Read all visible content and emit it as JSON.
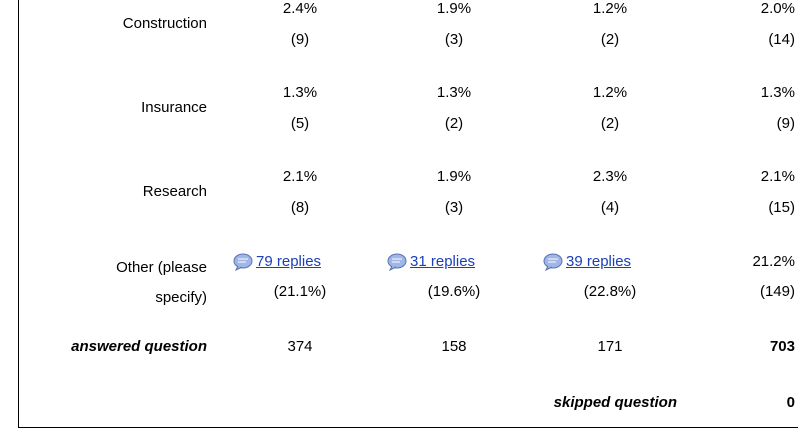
{
  "rows": [
    {
      "label": "Construction",
      "cells": [
        {
          "pct": "2.4%",
          "count": "(9)"
        },
        {
          "pct": "1.9%",
          "count": "(3)"
        },
        {
          "pct": "1.2%",
          "count": "(2)"
        },
        {
          "pct": "2.0%",
          "count": "(14)"
        }
      ]
    },
    {
      "label": "Insurance",
      "cells": [
        {
          "pct": "1.3%",
          "count": "(5)"
        },
        {
          "pct": "1.3%",
          "count": "(2)"
        },
        {
          "pct": "1.2%",
          "count": "(2)"
        },
        {
          "pct": "1.3%",
          "count": "(9)"
        }
      ]
    },
    {
      "label": "Research",
      "cells": [
        {
          "pct": "2.1%",
          "count": "(8)"
        },
        {
          "pct": "1.9%",
          "count": "(3)"
        },
        {
          "pct": "2.3%",
          "count": "(4)"
        },
        {
          "pct": "2.1%",
          "count": "(15)"
        }
      ]
    }
  ],
  "other": {
    "label": "Other (please specify)",
    "cells": [
      {
        "link": "79 replies",
        "pct": "(21.1%)"
      },
      {
        "link": "31 replies",
        "pct": "(19.6%)"
      },
      {
        "link": "39 replies",
        "pct": "(22.8%)"
      }
    ],
    "total": {
      "pct": "21.2%",
      "count": "(149)"
    }
  },
  "answered": {
    "label": "answered question",
    "values": [
      "374",
      "158",
      "171",
      "703"
    ]
  },
  "skipped": {
    "label": "skipped question",
    "value": "0"
  }
}
